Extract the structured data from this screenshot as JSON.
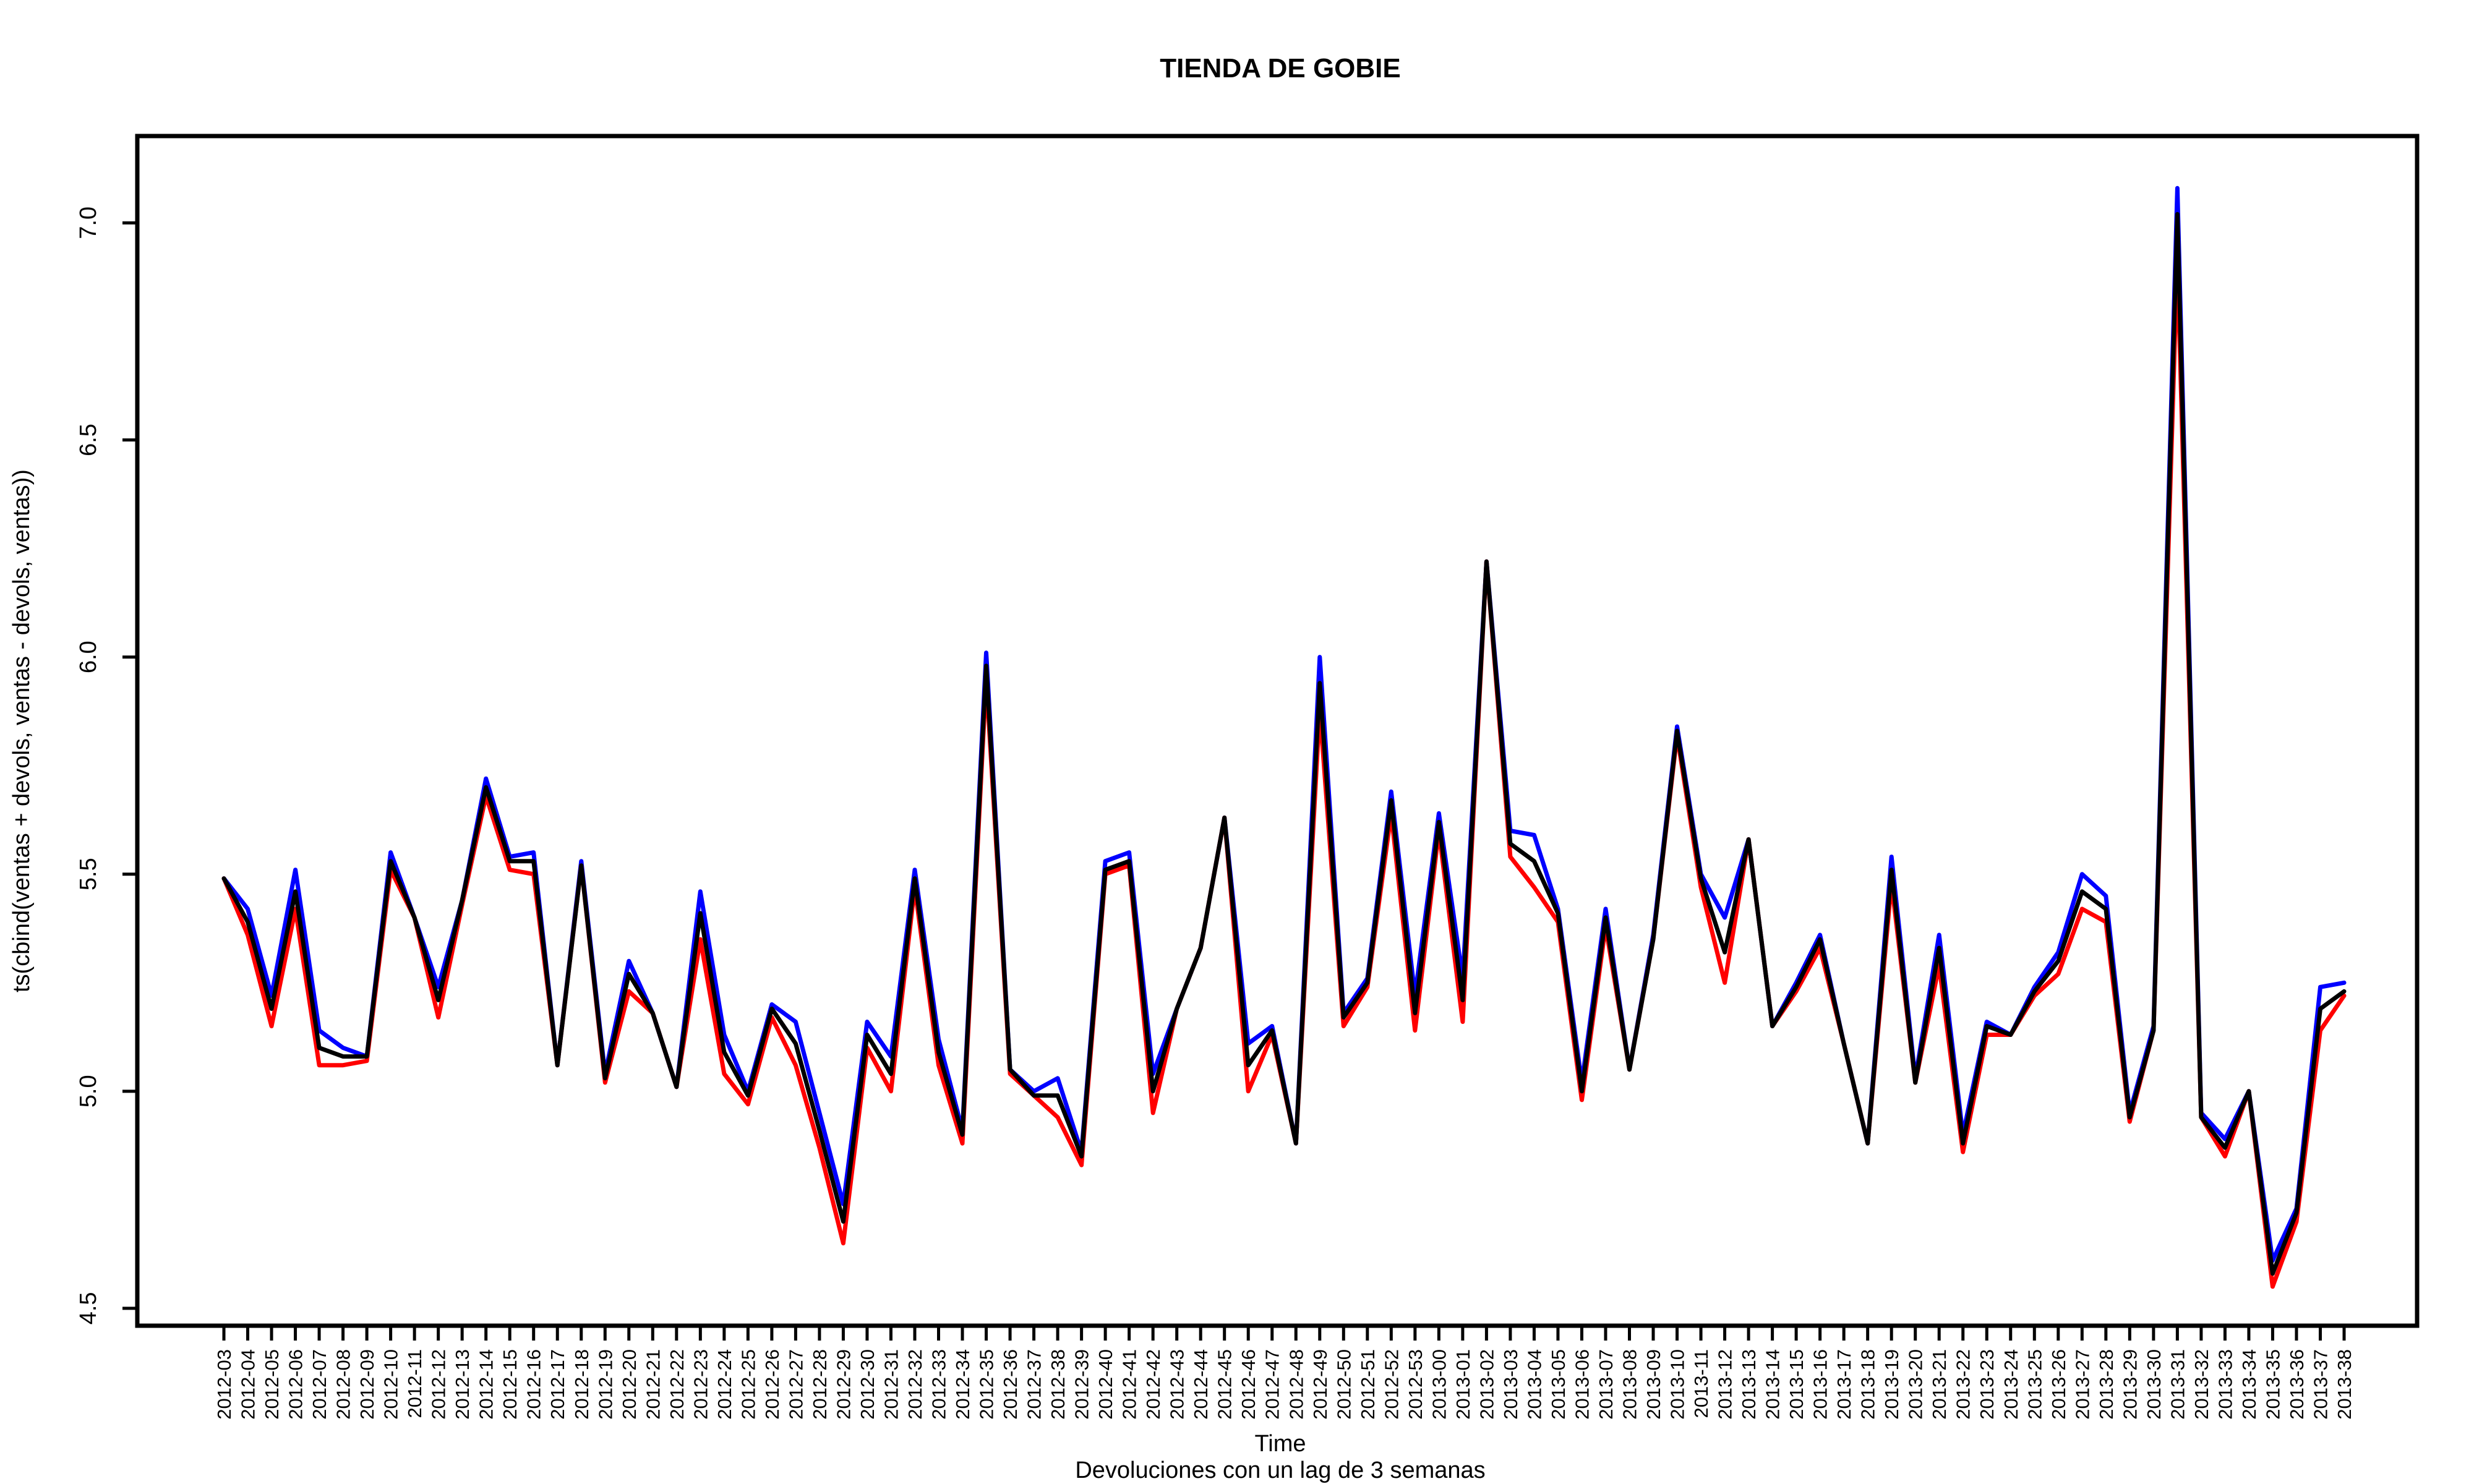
{
  "chart_data": {
    "type": "line",
    "title": "TIENDA DE GOBIE",
    "xlabel": "Time",
    "ylabel": "ts(cbind(ventas + devols, ventas - devols, ventas))",
    "subtitle": "Devoluciones con un lag de 3 semanas",
    "ylim": [
      4.46,
      7.2
    ],
    "yticks": [
      "4.5",
      "5.0",
      "5.5",
      "6.0",
      "6.5",
      "7.0"
    ],
    "grid": false,
    "categories": [
      "2012-03",
      "2012-04",
      "2012-05",
      "2012-06",
      "2012-07",
      "2012-08",
      "2012-09",
      "2012-10",
      "2012-11",
      "2012-12",
      "2012-13",
      "2012-14",
      "2012-15",
      "2012-16",
      "2012-17",
      "2012-18",
      "2012-19",
      "2012-20",
      "2012-21",
      "2012-22",
      "2012-23",
      "2012-24",
      "2012-25",
      "2012-26",
      "2012-27",
      "2012-28",
      "2012-29",
      "2012-30",
      "2012-31",
      "2012-32",
      "2012-33",
      "2012-34",
      "2012-35",
      "2012-36",
      "2012-37",
      "2012-38",
      "2012-39",
      "2012-40",
      "2012-41",
      "2012-42",
      "2012-43",
      "2012-44",
      "2012-45",
      "2012-46",
      "2012-47",
      "2012-48",
      "2012-49",
      "2012-50",
      "2012-51",
      "2012-52",
      "2012-53",
      "2013-00",
      "2013-01",
      "2013-02",
      "2013-03",
      "2013-04",
      "2013-05",
      "2013-06",
      "2013-07",
      "2013-08",
      "2013-09",
      "2013-10",
      "2013-11",
      "2013-12",
      "2013-13",
      "2013-14",
      "2013-15",
      "2013-16",
      "2013-17",
      "2013-18",
      "2013-19",
      "2013-20",
      "2013-21",
      "2013-22",
      "2013-23",
      "2013-24",
      "2013-25",
      "2013-26",
      "2013-27",
      "2013-28",
      "2013-29",
      "2013-30",
      "2013-31",
      "2013-32",
      "2013-33",
      "2013-34",
      "2013-35",
      "2013-36",
      "2013-37",
      "2013-38"
    ],
    "series": [
      {
        "color": "#0000ff",
        "values": [
          5.49,
          5.42,
          5.22,
          5.51,
          5.14,
          5.1,
          5.08,
          5.55,
          5.4,
          5.24,
          5.44,
          5.72,
          5.54,
          5.55,
          5.06,
          5.53,
          5.04,
          5.3,
          5.18,
          5.01,
          5.46,
          5.13,
          5.0,
          5.2,
          5.16,
          4.95,
          4.74,
          5.16,
          5.08,
          5.51,
          5.12,
          4.91,
          6.01,
          5.05,
          5.0,
          5.03,
          4.86,
          5.53,
          5.55,
          5.04,
          5.19,
          5.33,
          5.63,
          5.11,
          5.15,
          4.88,
          6.0,
          5.18,
          5.26,
          5.69,
          5.22,
          5.64,
          5.26,
          6.22,
          5.6,
          5.59,
          5.42,
          5.02,
          5.42,
          5.05,
          5.36,
          5.84,
          5.5,
          5.4,
          5.58,
          5.15,
          5.25,
          5.36,
          5.11,
          4.88,
          5.54,
          5.03,
          5.36,
          4.9,
          5.16,
          5.13,
          5.24,
          5.32,
          5.5,
          5.45,
          4.95,
          5.15,
          7.08,
          4.95,
          4.89,
          5.0,
          4.61,
          4.73,
          5.24,
          5.25
        ]
      },
      {
        "color": "#ff0000",
        "values": [
          5.49,
          5.36,
          5.15,
          5.42,
          5.06,
          5.06,
          5.07,
          5.51,
          5.4,
          5.17,
          5.43,
          5.68,
          5.51,
          5.5,
          5.06,
          5.52,
          5.02,
          5.23,
          5.18,
          5.01,
          5.35,
          5.04,
          4.97,
          5.17,
          5.06,
          4.87,
          4.65,
          5.1,
          5.0,
          5.47,
          5.06,
          4.88,
          5.95,
          5.04,
          4.99,
          4.94,
          4.83,
          5.5,
          5.52,
          4.95,
          5.19,
          5.33,
          5.63,
          5.0,
          5.13,
          4.88,
          5.88,
          5.15,
          5.24,
          5.64,
          5.14,
          5.6,
          5.16,
          6.22,
          5.54,
          5.47,
          5.39,
          4.98,
          5.38,
          5.05,
          5.35,
          5.82,
          5.47,
          5.25,
          5.58,
          5.15,
          5.23,
          5.33,
          5.11,
          4.88,
          5.48,
          5.02,
          5.29,
          4.86,
          5.13,
          5.13,
          5.22,
          5.27,
          5.42,
          5.39,
          4.93,
          5.14,
          6.92,
          4.94,
          4.85,
          5.0,
          4.55,
          4.7,
          5.14,
          5.22
        ]
      },
      {
        "color": "#000000",
        "values": [
          5.49,
          5.39,
          5.19,
          5.46,
          5.1,
          5.08,
          5.08,
          5.53,
          5.4,
          5.21,
          5.44,
          5.7,
          5.53,
          5.53,
          5.06,
          5.52,
          5.03,
          5.27,
          5.18,
          5.01,
          5.41,
          5.09,
          4.99,
          5.19,
          5.11,
          4.91,
          4.7,
          5.13,
          5.04,
          5.49,
          5.09,
          4.9,
          5.98,
          5.05,
          4.99,
          4.99,
          4.85,
          5.51,
          5.53,
          5.0,
          5.19,
          5.33,
          5.63,
          5.06,
          5.14,
          4.88,
          5.94,
          5.17,
          5.25,
          5.67,
          5.18,
          5.62,
          5.21,
          6.22,
          5.57,
          5.53,
          5.41,
          5.0,
          5.4,
          5.05,
          5.35,
          5.83,
          5.49,
          5.32,
          5.58,
          5.15,
          5.24,
          5.35,
          5.11,
          4.88,
          5.51,
          5.02,
          5.33,
          4.88,
          5.15,
          5.13,
          5.23,
          5.3,
          5.46,
          5.42,
          4.94,
          5.14,
          7.02,
          4.94,
          4.87,
          5.0,
          4.58,
          4.72,
          5.19,
          5.23
        ]
      }
    ]
  }
}
